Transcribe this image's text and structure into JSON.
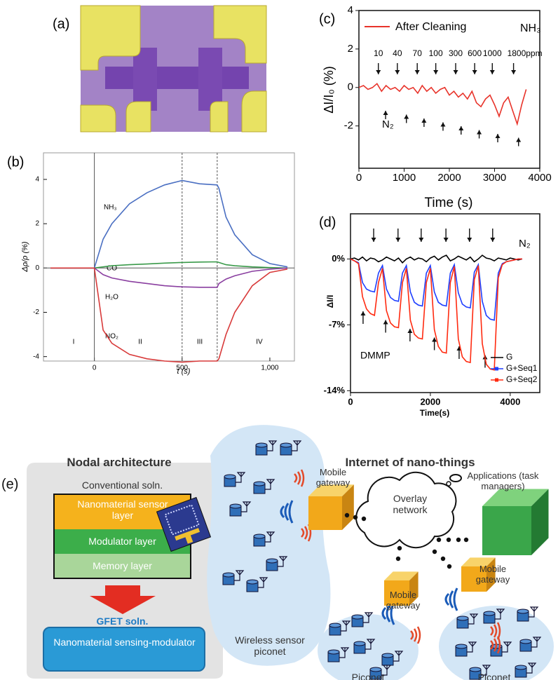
{
  "panel_a_label": "(a)",
  "chart_data": [
    {
      "type": "line",
      "label": "(b)",
      "x_label": "t (s)",
      "y_label": "Δρ/ρ (%)",
      "x": [
        -250,
        0,
        50,
        100,
        200,
        300,
        400,
        500,
        600,
        700,
        710,
        750,
        800,
        900,
        1000,
        1100
      ],
      "series": [
        {
          "name": "NH₃",
          "color": "#4a6fc2",
          "values": [
            0,
            0,
            1.3,
            2.0,
            2.9,
            3.4,
            3.75,
            3.95,
            3.8,
            3.75,
            3.6,
            2.3,
            1.5,
            0.6,
            0.2,
            0.05
          ]
        },
        {
          "name": "CO",
          "color": "#3a9a4a",
          "values": [
            0,
            0,
            0.05,
            0.1,
            0.15,
            0.18,
            0.22,
            0.25,
            0.27,
            0.28,
            0.25,
            0.15,
            0.1,
            0.05,
            0.02,
            0
          ]
        },
        {
          "name": "H₂O",
          "color": "#8a3fa0",
          "values": [
            0,
            0,
            -0.3,
            -0.45,
            -0.6,
            -0.7,
            -0.8,
            -0.85,
            -0.87,
            -0.87,
            -0.7,
            -0.5,
            -0.35,
            -0.15,
            -0.05,
            0
          ]
        },
        {
          "name": "NO₂",
          "color": "#d83a3a",
          "values": [
            0,
            0,
            -2.8,
            -3.4,
            -3.9,
            -4.1,
            -4.2,
            -4.25,
            -4.2,
            -4.2,
            -4.1,
            -3,
            -2,
            -0.8,
            -0.2,
            -0.05
          ]
        }
      ],
      "xlim": [
        -290,
        1140
      ],
      "ylim": [
        -4.2,
        5.2
      ],
      "xticks": [
        0,
        500,
        {
          "value": 1000,
          "label": "1,000"
        }
      ],
      "yticks": [
        -4,
        -2,
        0,
        2,
        4
      ],
      "reference_lines_x": [
        0,
        500,
        700
      ],
      "region_labels": [
        "I",
        "II",
        "III",
        "IV"
      ]
    },
    {
      "type": "line",
      "label": "(c)",
      "x_label": "Time (s)",
      "y_label": "ΔI/I₀ (%)",
      "x": [
        0,
        100,
        200,
        300,
        400,
        500,
        600,
        700,
        800,
        900,
        1000,
        1100,
        1200,
        1300,
        1400,
        1500,
        1600,
        1700,
        1800,
        1900,
        2000,
        2100,
        2200,
        2300,
        2400,
        2500,
        2600,
        2700,
        2800,
        2900,
        3000,
        3100,
        3200,
        3300,
        3400,
        3500,
        3600,
        3700
      ],
      "series": [
        {
          "name": "After Cleaning",
          "color": "#e8332a",
          "values": [
            0,
            0.1,
            -0.1,
            0,
            0.2,
            -0.2,
            0.1,
            -0.1,
            0,
            -0.2,
            0.1,
            -0.1,
            0,
            -0.3,
            0.1,
            -0.2,
            0,
            -0.3,
            -0.1,
            0,
            -0.4,
            -0.2,
            -0.5,
            -0.3,
            -0.6,
            -0.2,
            -0.8,
            -1.0,
            -0.6,
            -0.4,
            -0.9,
            -1.5,
            -0.8,
            -0.5,
            -1.2,
            -1.9,
            -0.9,
            -0.1
          ]
        }
      ],
      "xlim": [
        0,
        4000
      ],
      "ylim": [
        -4.2,
        4
      ],
      "xticks": [
        0,
        1000,
        2000,
        3000,
        4000
      ],
      "yticks": [
        -2,
        0,
        2,
        4
      ],
      "gas_label": "NH₃",
      "purge_label": "N₂",
      "injection_labels": [
        "10",
        "40",
        "70",
        "100",
        "300",
        "600",
        "1000",
        "1800ppm"
      ],
      "injection_x": [
        430,
        850,
        1290,
        1700,
        2140,
        2560,
        2950,
        3420
      ],
      "purge_x": [
        590,
        1050,
        1440,
        1860,
        2260,
        2660,
        3070,
        3530
      ]
    },
    {
      "type": "line",
      "label": "(d)",
      "x_label": "Time(s)",
      "y_label": "ΔI/I",
      "x": [
        0,
        100,
        200,
        300,
        400,
        500,
        600,
        700,
        800,
        900,
        1000,
        1100,
        1200,
        1300,
        1400,
        1500,
        1600,
        1700,
        1800,
        1900,
        2000,
        2100,
        2200,
        2300,
        2400,
        2500,
        2600,
        2700,
        2800,
        2900,
        3000,
        3100,
        3200,
        3300,
        3400,
        3500,
        3600,
        3700,
        3800,
        3900,
        4000,
        4100,
        4200,
        4300
      ],
      "series": [
        {
          "name": "G",
          "color": "#000000",
          "values": [
            0,
            0.1,
            -0.1,
            0.2,
            -0.2,
            0.1,
            0,
            -0.3,
            -0.1,
            0.2,
            0,
            -0.2,
            0.1,
            -0.4,
            0,
            0.2,
            -0.1,
            0.1,
            0,
            -0.3,
            0.1,
            0.3,
            -0.1,
            0.2,
            0.4,
            -0.2,
            0,
            0.3,
            0.1,
            -0.1,
            0.2,
            -0.3,
            0,
            0.4,
            0.1,
            0,
            -0.2,
            0.1,
            0,
            -0.1,
            0.1,
            0,
            -0.1,
            0
          ]
        },
        {
          "name": "G+Seq1",
          "color": "#1f3fff",
          "values": [
            0,
            -0.2,
            -0.4,
            -2.5,
            -3.2,
            -3.4,
            -3.5,
            -1.5,
            -0.7,
            -3.2,
            -4.1,
            -4.4,
            -4.5,
            -1.5,
            -0.7,
            -3.5,
            -4.6,
            -4.9,
            -5,
            -1.5,
            -0.7,
            -3.5,
            -4.6,
            -4.9,
            -5,
            -1.5,
            -0.6,
            -3.6,
            -4.8,
            -5.1,
            -5.2,
            -1.4,
            -0.6,
            -4.5,
            -6,
            -6.4,
            -6.5,
            -1.5,
            -0.5,
            -0.3,
            -0.2,
            -0.1,
            0,
            0
          ]
        },
        {
          "name": "G+Seq2",
          "color": "#ff2a10",
          "values": [
            0,
            -0.2,
            -0.5,
            -4,
            -5.3,
            -5.8,
            -6,
            -2.5,
            -1,
            -5.5,
            -6.8,
            -7.2,
            -7.3,
            -2.5,
            -1,
            -6.5,
            -8,
            -8.4,
            -8.5,
            -2.5,
            -1,
            -7.5,
            -9.3,
            -9.9,
            -10,
            -2.5,
            -0.8,
            -8.5,
            -10.4,
            -10.9,
            -11,
            -2.2,
            -0.7,
            -9,
            -11.2,
            -11.7,
            -11.8,
            -2,
            -0.6,
            -0.3,
            -0.2,
            -0.1,
            0,
            0
          ]
        }
      ],
      "xlim": [
        0,
        4740
      ],
      "ylim": [
        -14.2,
        4.8
      ],
      "xticks": [
        0,
        2000,
        4000
      ],
      "yticks": [
        {
          "value": 0,
          "label": "0%"
        },
        {
          "value": -7,
          "label": "-7%"
        },
        {
          "value": -14,
          "label": "-14%"
        }
      ],
      "purge_label": "N₂",
      "gas_label": "DMMP",
      "purge_arrows_x": [
        580,
        1190,
        1770,
        2390,
        2980,
        3560
      ],
      "gas_arrows_x": [
        315,
        880,
        1490,
        2100,
        2720,
        3370
      ]
    }
  ],
  "diagram": {
    "label": "(e)",
    "nodal_title": "Nodal architecture",
    "iont_title": "Internet of nano-things",
    "conventional": "Conventional soln.",
    "layers": [
      "Nanomaterial sensor layer",
      "Modulator layer",
      "Memory layer"
    ],
    "gfet": "GFET soln.",
    "gfet_box": "Nanomaterial sensing-modulator",
    "gateways": [
      "Mobile gateway",
      "Mobile gateway",
      "Mobile gateway"
    ],
    "overlay": "Overlay network",
    "applications": "Applications (task managers)",
    "wsn": "Wireless sensor piconet",
    "piconets": [
      "Piconet",
      "Piconet"
    ]
  }
}
